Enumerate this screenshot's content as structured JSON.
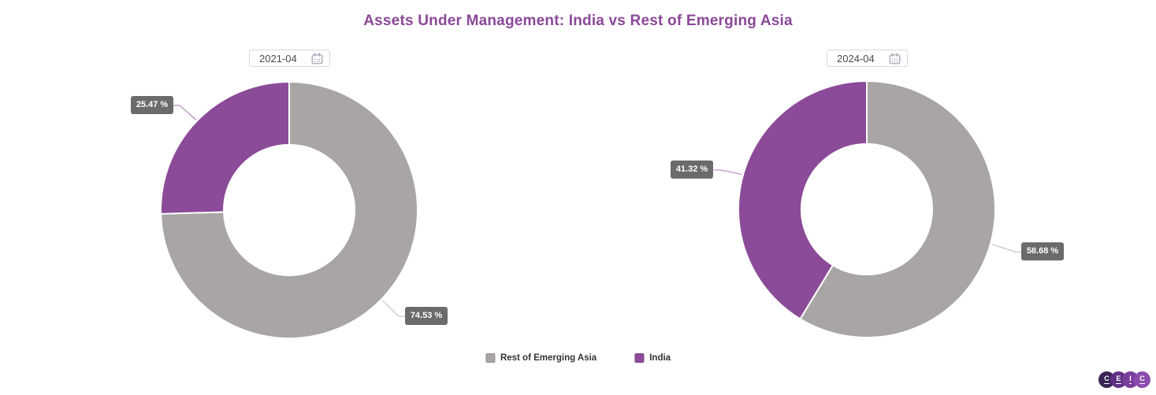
{
  "title": {
    "text": "Assets Under Management: India vs Rest of Emerging Asia",
    "color": "#8B4898"
  },
  "charts": [
    {
      "date_picker": {
        "value": "2021-04"
      },
      "slices": [
        {
          "name": "Rest of Emerging Asia",
          "label": "74.53 %"
        },
        {
          "name": "India",
          "label": "25.47 %"
        }
      ]
    },
    {
      "date_picker": {
        "value": "2024-04"
      },
      "slices": [
        {
          "name": "Rest of Emerging Asia",
          "label": "58.68 %"
        },
        {
          "name": "India",
          "label": "41.32 %"
        }
      ]
    }
  ],
  "legend": {
    "items": [
      {
        "label": "Rest of Emerging Asia",
        "color": "#A8A5A4"
      },
      {
        "label": "India",
        "color": "#8B4B98"
      }
    ]
  },
  "label_style": {
    "background": "#6B6B6B",
    "text_color": "#FFFFFF"
  },
  "logo": {
    "letters": [
      "C",
      "E",
      "I",
      "C"
    ],
    "colors": [
      "#3A2454",
      "#5F2F86",
      "#7A3D9C",
      "#8C4CAE"
    ]
  },
  "chart_data": [
    {
      "type": "pie",
      "donut": true,
      "title": "2021-04",
      "labels": [
        "Rest of Emerging Asia",
        "India"
      ],
      "values": [
        74.53,
        25.47
      ],
      "unit": "%",
      "colors": [
        "#A8A5A4",
        "#8B4B98"
      ],
      "data_labels": [
        "74.53 %",
        "25.47 %"
      ],
      "legend_position": "bottom"
    },
    {
      "type": "pie",
      "donut": true,
      "title": "2024-04",
      "labels": [
        "Rest of Emerging Asia",
        "India"
      ],
      "values": [
        58.68,
        41.32
      ],
      "unit": "%",
      "colors": [
        "#A8A5A4",
        "#8B4B98"
      ],
      "data_labels": [
        "58.68 %",
        "41.32 %"
      ],
      "legend_position": "bottom"
    }
  ]
}
